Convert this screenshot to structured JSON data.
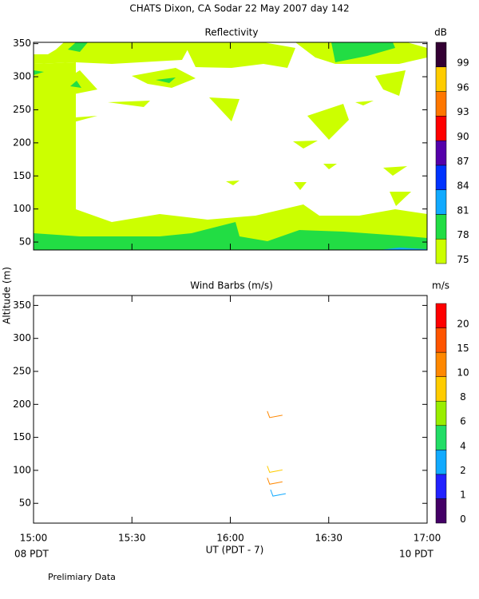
{
  "title": "CHATS Dixon, CA  Sodar  22 May 2007  day 142",
  "y_label": "Altitude (m)",
  "x_label": "UT  (PDT - 7)",
  "left_note": "08 PDT",
  "right_note": "10 PDT",
  "footer": "Prelimiary Data",
  "chart_data": [
    {
      "type": "contour",
      "title": "Reflectivity",
      "ylim": [
        38,
        352
      ],
      "yticks": [
        50,
        100,
        150,
        200,
        250,
        300,
        350
      ],
      "colorbar": {
        "unit": "dB",
        "levels": [
          75,
          78,
          81,
          84,
          87,
          90,
          93,
          96,
          99
        ],
        "colors": [
          "#ccff00",
          "#22dd44",
          "#11aaff",
          "#0033ff",
          "#5500aa",
          "#ff0000",
          "#ff7700",
          "#ffcc00",
          "#330033"
        ]
      }
    },
    {
      "type": "barbs",
      "title": "Wind Barbs (m/s)",
      "xlim": [
        900,
        1020
      ],
      "xticks": [
        {
          "value": 900,
          "label": "15:00"
        },
        {
          "value": 930,
          "label": "15:30"
        },
        {
          "value": 960,
          "label": "16:00"
        },
        {
          "value": 990,
          "label": "16:30"
        },
        {
          "value": 1020,
          "label": "17:00"
        }
      ],
      "ylim": [
        20,
        365
      ],
      "yticks": [
        50,
        100,
        150,
        200,
        250,
        300,
        350
      ],
      "x": [
        972,
        972,
        972,
        973
      ],
      "altitude": [
        180,
        97,
        79,
        61
      ],
      "speed": [
        10,
        9,
        10,
        2
      ],
      "colorbar": {
        "unit": "m/s",
        "levels": [
          0,
          1,
          2,
          4,
          6,
          8,
          10,
          15,
          20
        ],
        "colors": [
          "#440066",
          "#2222ff",
          "#11aaff",
          "#22dd66",
          "#99ee00",
          "#ffcc00",
          "#ff8800",
          "#ff5500",
          "#ff0000"
        ]
      }
    }
  ]
}
